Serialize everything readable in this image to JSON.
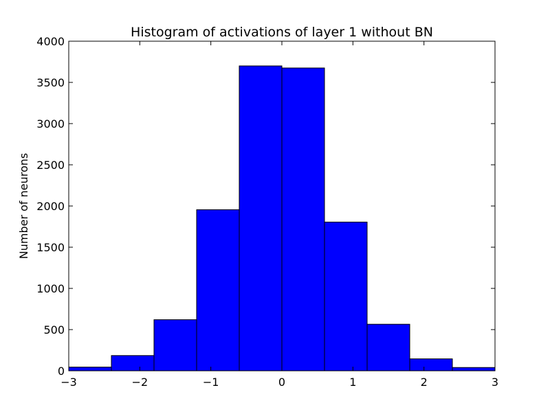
{
  "chart_data": {
    "type": "bar",
    "title": "Histogram of activations of layer 1  without BN",
    "xlabel": "",
    "ylabel": "Number of neurons",
    "bin_edges": [
      -3,
      -2.4,
      -1.8,
      -1.2,
      -0.6,
      0,
      0.6,
      1.2,
      1.8,
      2.4,
      3
    ],
    "values": [
      45,
      185,
      620,
      1955,
      3700,
      3675,
      1805,
      565,
      145,
      40
    ],
    "xlim": [
      -3,
      3
    ],
    "ylim": [
      0,
      4000
    ],
    "xticks": [
      -3,
      -2,
      -1,
      0,
      1,
      2,
      3
    ],
    "xtick_labels": [
      "−3",
      "−2",
      "−1",
      "0",
      "1",
      "2",
      "3"
    ],
    "yticks": [
      0,
      500,
      1000,
      1500,
      2000,
      2500,
      3000,
      3500,
      4000
    ],
    "ytick_labels": [
      "0",
      "500",
      "1000",
      "1500",
      "2000",
      "2500",
      "3000",
      "3500",
      "4000"
    ],
    "bar_color": "#0000ff",
    "edge_color": "#000000",
    "grid": false
  }
}
